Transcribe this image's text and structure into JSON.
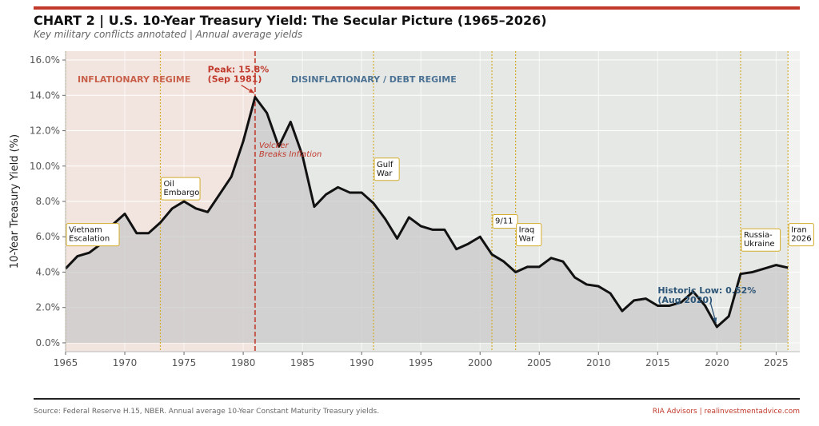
{
  "header": {
    "title": "CHART 2  |  U.S. 10-Year Treasury Yield: The Secular Picture (1965–2026)",
    "subtitle": "Key military conflicts annotated  |  Annual average yields"
  },
  "footer": {
    "source": "Source: Federal Reserve H.15, NBER. Annual average 10-Year Constant Maturity Treasury yields.",
    "brand": "RIA Advisors | realinvestmentadvice.com"
  },
  "colors": {
    "accent": "#c0392b",
    "line": "#111111",
    "regime1_bg": "#f2e4df",
    "regime2_bg": "#e6e8e6",
    "area_fill": "#c9c9c9",
    "event_line": "#d4ac2b",
    "low_label": "#2c5577"
  },
  "chart_data": {
    "type": "line",
    "title": "",
    "xlabel": "",
    "ylabel": "10-Year Treasury Yield (%)",
    "xlim": [
      1965,
      2027
    ],
    "ylim": [
      -0.5,
      16.5
    ],
    "yticks": [
      0,
      2,
      4,
      6,
      8,
      10,
      12,
      14,
      16
    ],
    "ytick_labels": [
      "0.0%",
      "2.0%",
      "4.0%",
      "6.0%",
      "8.0%",
      "10.0%",
      "12.0%",
      "14.0%",
      "16.0%"
    ],
    "xticks": [
      1965,
      1970,
      1975,
      1980,
      1985,
      1990,
      1995,
      2000,
      2005,
      2010,
      2015,
      2020,
      2025
    ],
    "xtick_labels": [
      "1965",
      "1970",
      "1975",
      "1980",
      "1985",
      "1990",
      "1995",
      "2000",
      "2005",
      "2010",
      "2015",
      "2020",
      "2025"
    ],
    "grid": true,
    "series": [
      {
        "name": "",
        "x": [
          1965,
          1966,
          1967,
          1968,
          1969,
          1970,
          1971,
          1972,
          1973,
          1974,
          1975,
          1976,
          1977,
          1978,
          1979,
          1980,
          1981,
          1982,
          1983,
          1984,
          1985,
          1986,
          1987,
          1988,
          1989,
          1990,
          1991,
          1992,
          1993,
          1994,
          1995,
          1996,
          1997,
          1998,
          1999,
          2000,
          2001,
          2002,
          2003,
          2004,
          2005,
          2006,
          2007,
          2008,
          2009,
          2010,
          2011,
          2012,
          2013,
          2014,
          2015,
          2016,
          2017,
          2018,
          2019,
          2020,
          2021,
          2022,
          2023,
          2024,
          2025,
          2026
        ],
        "values": [
          4.2,
          4.9,
          5.1,
          5.6,
          6.7,
          7.3,
          6.2,
          6.2,
          6.8,
          7.6,
          8.0,
          7.6,
          7.4,
          8.4,
          9.4,
          11.4,
          13.9,
          13.0,
          11.1,
          12.5,
          10.6,
          7.7,
          8.4,
          8.8,
          8.5,
          8.5,
          7.9,
          7.0,
          5.9,
          7.1,
          6.6,
          6.4,
          6.4,
          5.3,
          5.6,
          6.0,
          5.0,
          4.6,
          4.0,
          4.3,
          4.3,
          4.8,
          4.6,
          3.7,
          3.3,
          3.2,
          2.8,
          1.8,
          2.4,
          2.5,
          2.1,
          2.1,
          2.3,
          2.9,
          2.1,
          0.9,
          1.5,
          3.9,
          4.0,
          4.2,
          4.4,
          4.25
        ]
      }
    ],
    "regimes": [
      {
        "label": "INFLATIONARY REGIME",
        "start": 1965,
        "end": 1981
      },
      {
        "label": "DISINFLATIONARY / DEBT REGIME",
        "start": 1981,
        "end": 2027
      }
    ],
    "peak_line": {
      "x": 1981,
      "label": "Volcker\nBreaks Inflation"
    },
    "events": [
      {
        "label": "Vietnam\nEscalation",
        "x": 1965,
        "y": 6.3
      },
      {
        "label": "Oil\nEmbargo",
        "x": 1973,
        "y": 8.9
      },
      {
        "label": "Gulf\nWar",
        "x": 1991,
        "y": 10.0
      },
      {
        "label": "9/11",
        "x": 2001,
        "y": 6.8
      },
      {
        "label": "Iraq\nWar",
        "x": 2003,
        "y": 6.3
      },
      {
        "label": "Russia-\nUkraine",
        "x": 2022,
        "y": 6.0
      },
      {
        "label": "Iran\n2026",
        "x": 2026,
        "y": 6.3
      }
    ],
    "annotations": [
      {
        "label": "Peak: 15.8%\n(Sep 1981)",
        "text_x": 1977,
        "text_y": 15.3,
        "arrow_x": 1981,
        "arrow_y": 13.9,
        "color": "#c0392b"
      },
      {
        "label": "Historic Low: 0.52%\n(Aug 2020)",
        "text_x": 2015,
        "text_y": 2.8,
        "arrow_x": 2020,
        "arrow_y": 0.9,
        "color": "#2c5577"
      }
    ]
  }
}
